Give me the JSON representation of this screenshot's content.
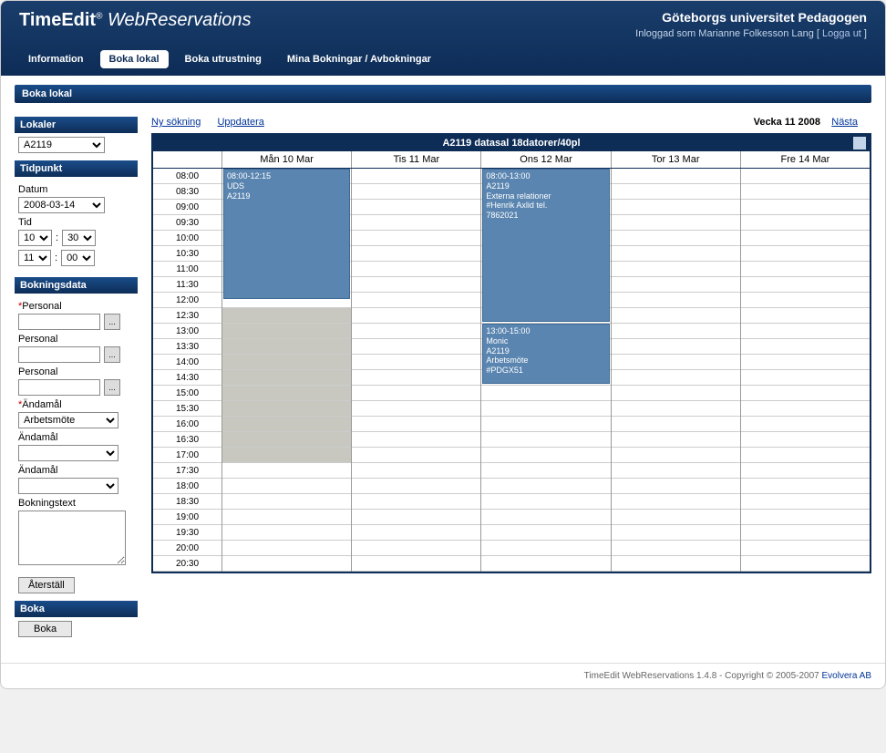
{
  "header": {
    "logo_bold": "TimeEdit",
    "logo_italic": "WebReservations",
    "org": "Göteborgs universitet Pedagogen",
    "user_prefix": "Inloggad som ",
    "user_name": "Marianne Folkesson Lang",
    "logout": "Logga ut"
  },
  "nav": [
    {
      "label": "Information",
      "active": false
    },
    {
      "label": "Boka lokal",
      "active": true
    },
    {
      "label": "Boka utrustning",
      "active": false
    },
    {
      "label": "Mina Bokningar / Avbokningar",
      "active": false
    }
  ],
  "section_title": "Boka lokal",
  "sidebar": {
    "lokaler_head": "Lokaler",
    "lokaler_value": "A2119",
    "tidpunkt_head": "Tidpunkt",
    "datum_label": "Datum",
    "datum_value": "2008-03-14",
    "tid_label": "Tid",
    "tid_h1": "10",
    "tid_m1": "30",
    "tid_h2": "11",
    "tid_m2": "00",
    "bokningsdata_head": "Bokningsdata",
    "personal_req": "Personal",
    "personal2": "Personal",
    "personal3": "Personal",
    "andamal_req": "Ändamål",
    "andamal_value": "Arbetsmöte",
    "andamal2": "Ändamål",
    "andamal3": "Ändamål",
    "bokningstext": "Bokningstext",
    "reset": "Återställ",
    "boka_head": "Boka",
    "boka_btn": "Boka"
  },
  "main": {
    "ny_sokning": "Ny sökning",
    "uppdatera": "Uppdatera",
    "week": "Vecka 11 2008",
    "nasta": "Nästa",
    "cal_title": "A2119 datasal 18datorer/40pl",
    "days": [
      "Mån 10 Mar",
      "Tis 11 Mar",
      "Ons 12 Mar",
      "Tor 13 Mar",
      "Fre 14 Mar"
    ],
    "times": [
      "08:00",
      "08:30",
      "09:00",
      "09:30",
      "10:00",
      "10:30",
      "11:00",
      "11:30",
      "12:00",
      "12:30",
      "13:00",
      "13:30",
      "14:00",
      "14:30",
      "15:00",
      "15:30",
      "16:00",
      "16:30",
      "17:00",
      "17:30",
      "18:00",
      "18:30",
      "19:00",
      "19:30",
      "20:00",
      "20:30"
    ],
    "bookings": [
      {
        "day": 0,
        "start": 0,
        "span": 8.5,
        "text": "08:00-12:15\nUDS\nA2119"
      },
      {
        "day": 2,
        "start": 0,
        "span": 10,
        "text": "08:00-13:00\nA2119\nExterna relationer\n#Henrik Axlid tel.\n7862021"
      },
      {
        "day": 2,
        "start": 10,
        "span": 4,
        "text": "13:00-15:00\nMonic\nA2119\nArbetsmöte\n#PDGX51"
      }
    ],
    "shaded": {
      "day": 0,
      "from": 9,
      "to": 19
    }
  },
  "footer": {
    "text": "TimeEdit WebReservations 1.4.8 - Copyright © 2005-2007 ",
    "link": "Evolvera AB"
  }
}
